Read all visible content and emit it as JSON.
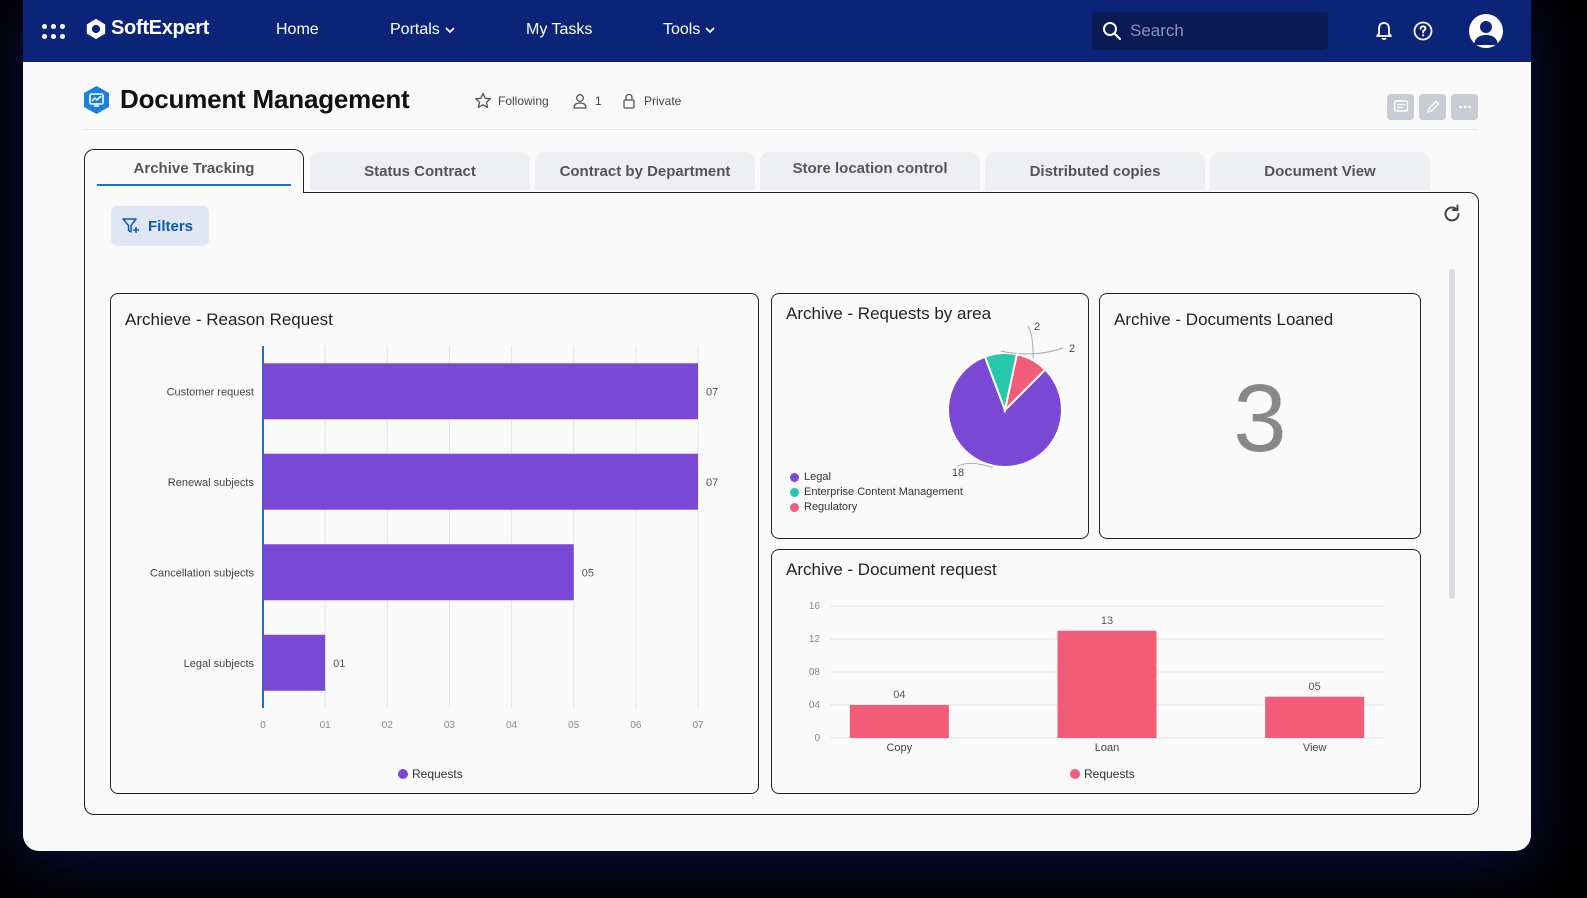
{
  "nav": {
    "brand": "SoftExpert",
    "items": [
      {
        "label": "Home",
        "has_dropdown": false
      },
      {
        "label": "Portals",
        "has_dropdown": true
      },
      {
        "label": "My Tasks",
        "has_dropdown": false
      },
      {
        "label": "Tools",
        "has_dropdown": true
      }
    ],
    "search_placeholder": "Search"
  },
  "page": {
    "title": "Document Management",
    "following_label": "Following",
    "followers_count": "1",
    "privacy_label": "Private"
  },
  "tabs": [
    {
      "label": "Archive Tracking",
      "active": true
    },
    {
      "label": "Status Contract",
      "active": false
    },
    {
      "label": "Contract by Department",
      "active": false
    },
    {
      "label": "Store location control",
      "active": false
    },
    {
      "label": "Distributed copies",
      "active": false
    },
    {
      "label": "Document View",
      "active": false
    }
  ],
  "filters_label": "Filters",
  "colors": {
    "nav_bg": "#0b2478",
    "purple": "#7b48d6",
    "teal": "#26c9a9",
    "pink": "#f25c78",
    "accent_blue": "#1b6fc9"
  },
  "cards": {
    "reason_request": {
      "title": "Archieve - Reason Request"
    },
    "requests_by_area": {
      "title": "Archive - Requests by area"
    },
    "documents_loaned": {
      "title": "Archive - Documents Loaned",
      "value": "3"
    },
    "document_request": {
      "title": "Archive - Document request"
    }
  },
  "chart_data": [
    {
      "type": "bar",
      "orientation": "horizontal",
      "title": "Archieve - Reason Request",
      "categories": [
        "Customer request",
        "Renewal subjects",
        "Cancellation subjects",
        "Legal subjects"
      ],
      "series": [
        {
          "name": "Requests",
          "values": [
            7,
            7,
            5,
            1
          ],
          "color": "#7b48d6"
        }
      ],
      "value_labels": [
        "07",
        "07",
        "05",
        "01"
      ],
      "xticks": [
        "0",
        "01",
        "02",
        "03",
        "04",
        "05",
        "06",
        "07"
      ],
      "xlim": [
        0,
        7
      ],
      "legend": "bottom-center"
    },
    {
      "type": "pie",
      "title": "Archive - Requests by area",
      "slices": [
        {
          "label": "Legal",
          "value": 18,
          "color": "#7b48d6"
        },
        {
          "label": "Enterprise Content Management",
          "value": 2,
          "color": "#26c9a9"
        },
        {
          "label": "Regulatory",
          "value": 2,
          "color": "#f25c78"
        }
      ],
      "legend": "bottom-left"
    },
    {
      "type": "bar",
      "orientation": "vertical",
      "title": "Archive - Document request",
      "categories": [
        "Copy",
        "Loan",
        "View"
      ],
      "series": [
        {
          "name": "Requests",
          "values": [
            4,
            13,
            5
          ],
          "color": "#f25c78"
        }
      ],
      "value_labels": [
        "04",
        "13",
        "05"
      ],
      "yticks": [
        "0",
        "04",
        "08",
        "12",
        "16"
      ],
      "ylim": [
        0,
        16
      ],
      "legend": "bottom-center"
    }
  ]
}
